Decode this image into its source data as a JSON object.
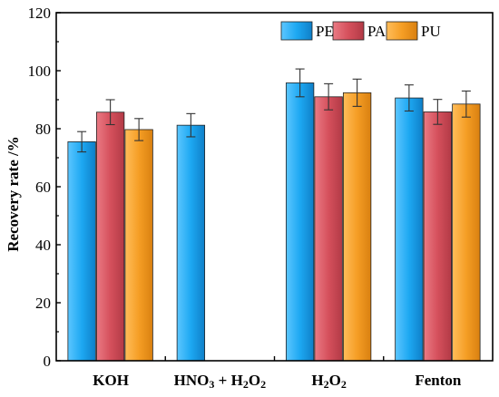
{
  "chart_data": {
    "type": "bar",
    "categories": [
      "KOH",
      "HNO3 + H2O2",
      "H2O2",
      "Fenton"
    ],
    "category_labels": [
      [
        {
          "t": "KOH"
        }
      ],
      [
        {
          "t": "HNO"
        },
        {
          "t": "3",
          "sub": true
        },
        {
          "t": " + H"
        },
        {
          "t": "2",
          "sub": true
        },
        {
          "t": "O"
        },
        {
          "t": "2",
          "sub": true
        }
      ],
      [
        {
          "t": "H"
        },
        {
          "t": "2",
          "sub": true
        },
        {
          "t": "O"
        },
        {
          "t": "2",
          "sub": true
        }
      ],
      [
        {
          "t": "Fenton"
        }
      ]
    ],
    "series": [
      {
        "name": "PET",
        "color": "#1da8f2",
        "values": [
          75.5,
          81.2,
          95.8,
          90.6
        ],
        "errors": [
          3.5,
          4.0,
          4.8,
          4.5
        ]
      },
      {
        "name": "PA",
        "color": "#d5505c",
        "values": [
          85.7,
          null,
          91.0,
          85.8
        ],
        "errors": [
          4.3,
          null,
          4.5,
          4.3
        ]
      },
      {
        "name": "PU",
        "color": "#f59e25",
        "values": [
          79.7,
          null,
          92.4,
          88.5
        ],
        "errors": [
          3.8,
          null,
          4.7,
          4.5
        ]
      }
    ],
    "ylabel": "Recovery rate /%",
    "xlabel": "",
    "ylim": [
      0,
      120
    ],
    "yticks": [
      0,
      20,
      40,
      60,
      80,
      100,
      120
    ],
    "grid": false,
    "legend": "top-right"
  }
}
